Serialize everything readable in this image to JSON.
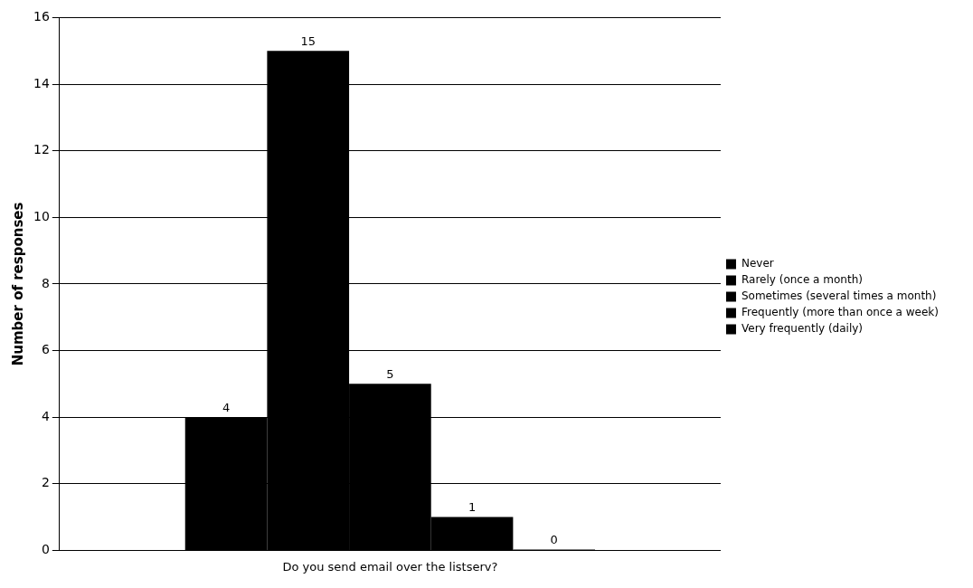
{
  "chart_data": {
    "type": "bar",
    "ylabel": "Number of responses",
    "categories": [
      "Do you send email over the listserv?"
    ],
    "series": [
      {
        "name": "Never",
        "color": "#000000",
        "values": [
          4
        ]
      },
      {
        "name": "Rarely (once a month)",
        "color": "#000000",
        "values": [
          15
        ]
      },
      {
        "name": "Sometimes (several times a month)",
        "color": "#000000",
        "values": [
          5
        ]
      },
      {
        "name": "Frequently (more than once a week)",
        "color": "#000000",
        "values": [
          1
        ]
      },
      {
        "name": "Very frequently (daily)",
        "color": "#000000",
        "values": [
          0
        ]
      }
    ],
    "ylim": [
      0,
      16
    ],
    "yticks": [
      0,
      2,
      4,
      6,
      8,
      10,
      12,
      14,
      16
    ],
    "grid": "y",
    "legend": "right",
    "data_labels": true
  }
}
